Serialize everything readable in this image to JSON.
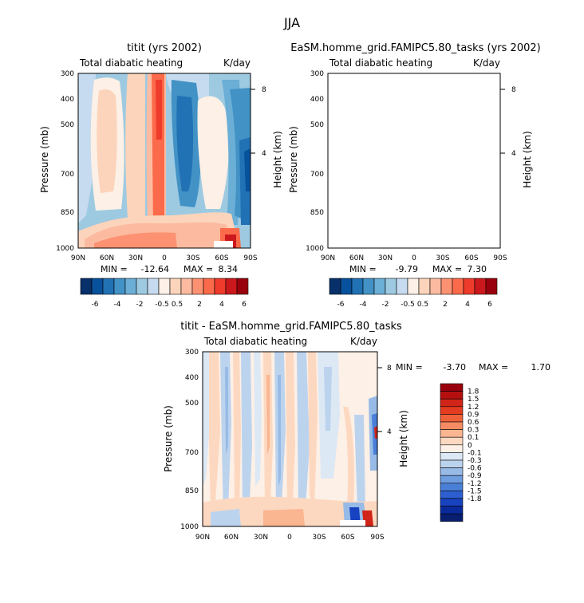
{
  "figure_title": "JJA",
  "color_hex": {
    "full": [
      "#08306b",
      "#08519c",
      "#2171b5",
      "#4292c6",
      "#6baed6",
      "#9ecae1",
      "#c6dbef",
      "#fdf0e6",
      "#fcd4bb",
      "#fcbba1",
      "#fc9272",
      "#fb6a4a",
      "#ef3b2c",
      "#cb181d",
      "#99000d"
    ],
    "diff": [
      "#99000d",
      "#b5100f",
      "#d02518",
      "#e43c21",
      "#f0613a",
      "#f58b63",
      "#fab591",
      "#fdd8c0",
      "#fdf0e6",
      "#dde8f5",
      "#bcd3ee",
      "#97bbe6",
      "#6f9ee0",
      "#4a7fd8",
      "#2e5fd0",
      "#1742c0",
      "#0a2a9c",
      "#081f70"
    ]
  },
  "chart_data": [
    {
      "type": "heatmap",
      "title": "titit (yrs 2002)",
      "left_label": "Total diabatic heating",
      "right_label": "K/day",
      "ylabel": "Pressure (mb)",
      "y2label": "Height (km)",
      "x_ticks": [
        "90N",
        "60N",
        "30N",
        "0",
        "30S",
        "60S",
        "90S"
      ],
      "y_ticks": [
        "300",
        "400",
        "500",
        "700",
        "850",
        "1000"
      ],
      "y2_ticks": [
        "8",
        "4"
      ],
      "stats": {
        "min_label": "MIN =",
        "min": "-12.64",
        "max_label": "MAX =",
        "max": "8.34"
      },
      "colorbar_labels": [
        "-6",
        "-4",
        "-2",
        "-0.5",
        "0.5",
        "2",
        "4",
        "6"
      ]
    },
    {
      "type": "heatmap",
      "title": "EaSM.homme_grid.FAMIPC5.80_tasks (yrs 2002)",
      "left_label": "Total diabatic heating",
      "right_label": "K/day",
      "ylabel": "Pressure (mb)",
      "y2label": "Height (km)",
      "x_ticks": [
        "90N",
        "60N",
        "30N",
        "0",
        "30S",
        "60S",
        "90S"
      ],
      "y_ticks": [
        "300",
        "400",
        "500",
        "700",
        "850",
        "1000"
      ],
      "y2_ticks": [
        "8",
        "4"
      ],
      "stats": {
        "min_label": "MIN =",
        "min": "-9.79",
        "max_label": "MAX =",
        "max": "7.30"
      },
      "colorbar_labels": [
        "-6",
        "-4",
        "-2",
        "-0.5",
        "0.5",
        "2",
        "4",
        "6"
      ]
    },
    {
      "type": "heatmap",
      "title": "titit - EaSM.homme_grid.FAMIPC5.80_tasks",
      "left_label": "Total diabatic heating",
      "right_label": "K/day",
      "ylabel": "Pressure (mb)",
      "y2label": "Height (km)",
      "x_ticks": [
        "90N",
        "60N",
        "30N",
        "0",
        "30S",
        "60S",
        "90S"
      ],
      "y_ticks": [
        "300",
        "400",
        "500",
        "700",
        "850",
        "1000"
      ],
      "y2_ticks": [
        "8",
        "4"
      ],
      "stats": {
        "min_label": "MIN =",
        "min": "-3.70",
        "max_label": "MAX =",
        "max": "1.70"
      },
      "colorbar_labels": [
        "1.8",
        "1.5",
        "1.2",
        "0.9",
        "0.6",
        "0.3",
        "0.1",
        "0",
        "-0.1",
        "-0.3",
        "-0.6",
        "-0.9",
        "-1.2",
        "-1.5",
        "-1.8"
      ]
    }
  ]
}
